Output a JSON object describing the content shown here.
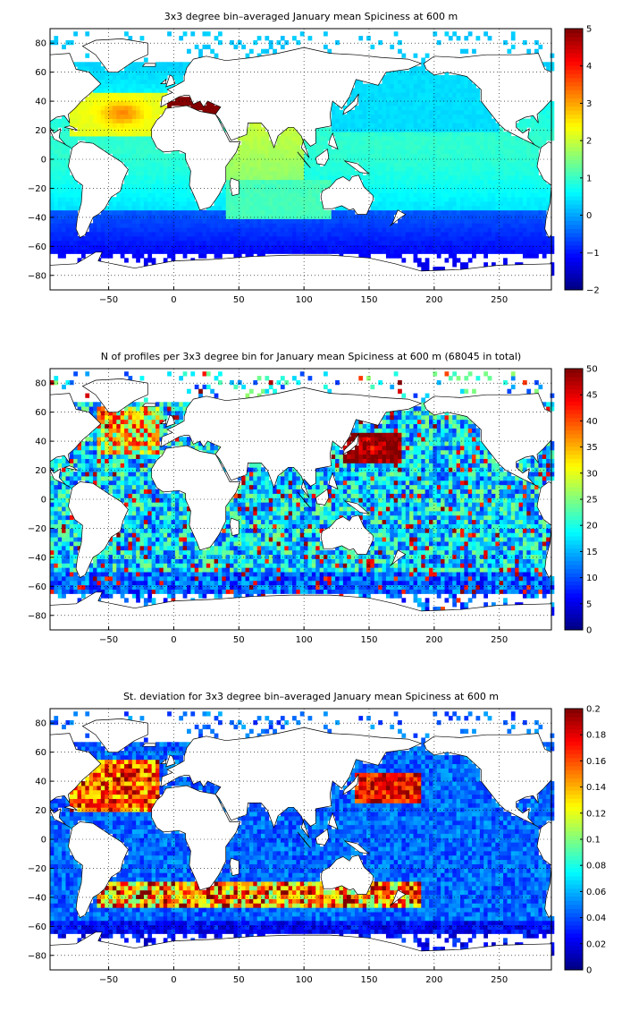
{
  "colors": {
    "colormap": "jet",
    "land": "#ffffff",
    "frame": "#000000",
    "grid": "#000000"
  },
  "chart_data": [
    {
      "type": "heatmap",
      "title": "3x3 degree bin–averaged January mean Spiciness at 600 m",
      "xlabel": "",
      "ylabel": "",
      "xlim": [
        -95,
        290
      ],
      "ylim": [
        -90,
        90
      ],
      "xticks": [
        -50,
        0,
        50,
        100,
        150,
        200,
        250
      ],
      "yticks": [
        -80,
        -60,
        -40,
        -20,
        0,
        20,
        40,
        60,
        80
      ],
      "grid": true,
      "colorbar": {
        "min": -2,
        "max": 5,
        "ticks": [
          -2,
          -1,
          0,
          1,
          2,
          3,
          4,
          5
        ]
      }
    },
    {
      "type": "heatmap",
      "title": "N of profiles per 3x3 degree bin for January mean Spiciness at 600 m (68045 in total)",
      "xlabel": "",
      "ylabel": "",
      "xlim": [
        -95,
        290
      ],
      "ylim": [
        -90,
        90
      ],
      "xticks": [
        -50,
        0,
        50,
        100,
        150,
        200,
        250
      ],
      "yticks": [
        -80,
        -60,
        -40,
        -20,
        0,
        20,
        40,
        60,
        80
      ],
      "grid": true,
      "total_profiles": 68045,
      "colorbar": {
        "min": 0,
        "max": 50,
        "ticks": [
          0,
          5,
          10,
          15,
          20,
          25,
          30,
          35,
          40,
          45,
          50
        ]
      }
    },
    {
      "type": "heatmap",
      "title": "St. deviation for 3x3 degree bin–averaged January mean Spiciness at 600 m",
      "xlabel": "",
      "ylabel": "",
      "xlim": [
        -95,
        290
      ],
      "ylim": [
        -90,
        90
      ],
      "xticks": [
        -50,
        0,
        50,
        100,
        150,
        200,
        250
      ],
      "yticks": [
        -80,
        -60,
        -40,
        -20,
        0,
        20,
        40,
        60,
        80
      ],
      "grid": true,
      "colorbar": {
        "min": 0,
        "max": 0.2,
        "ticks": [
          0,
          0.02,
          0.04,
          0.06,
          0.08,
          0.1,
          0.12,
          0.14,
          0.16,
          0.18,
          0.2
        ]
      }
    }
  ]
}
